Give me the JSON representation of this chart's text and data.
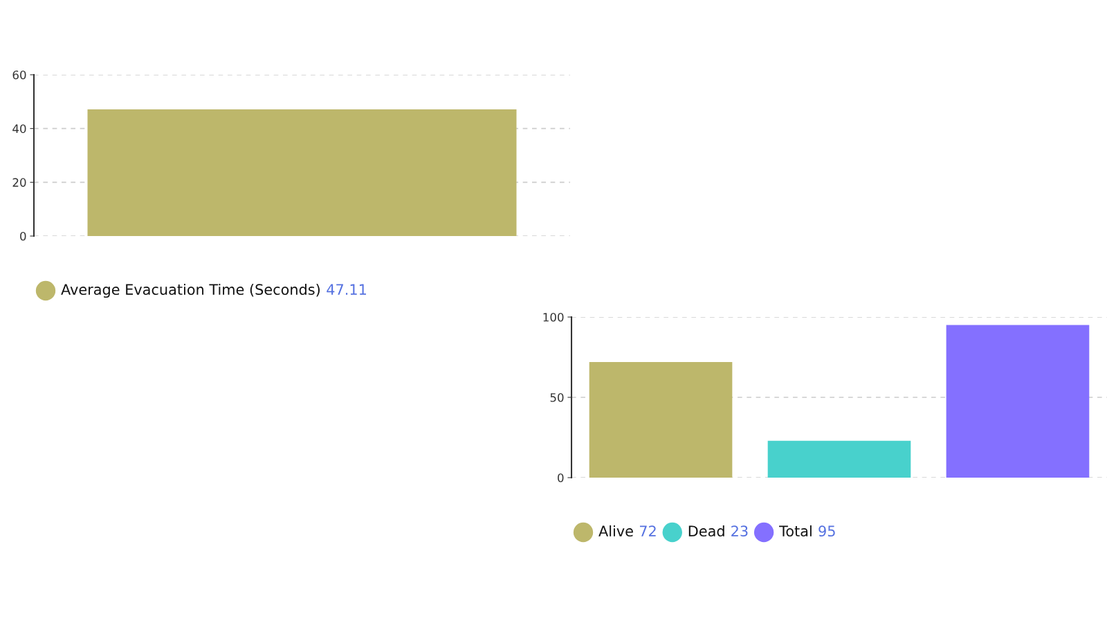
{
  "chart_data": [
    {
      "type": "bar",
      "categories": [
        null
      ],
      "series": [
        {
          "name": "Average Evacuation Time (Seconds)",
          "color": "#bdb76b",
          "values": [
            47.11
          ]
        }
      ],
      "ylim": [
        0,
        60
      ],
      "yticks": [
        0,
        20,
        40,
        60
      ],
      "grid": "y",
      "legend": "bottom left",
      "annotations": [
        "47.11"
      ],
      "tick_labels": "y"
    },
    {
      "type": "bar",
      "categories": [
        null
      ],
      "series": [
        {
          "name": "Alive",
          "color": "#bdb76b",
          "values": [
            72
          ]
        },
        {
          "name": "Dead",
          "color": "#48d1cc",
          "values": [
            23
          ]
        },
        {
          "name": "Total",
          "color": "#8470ff",
          "values": [
            95
          ]
        }
      ],
      "ylim": [
        0,
        100
      ],
      "yticks": [
        0,
        50,
        100
      ],
      "grid": "y",
      "legend": "bottom left",
      "annotations": [
        "72",
        "23",
        "95"
      ],
      "tick_labels": "y"
    }
  ]
}
